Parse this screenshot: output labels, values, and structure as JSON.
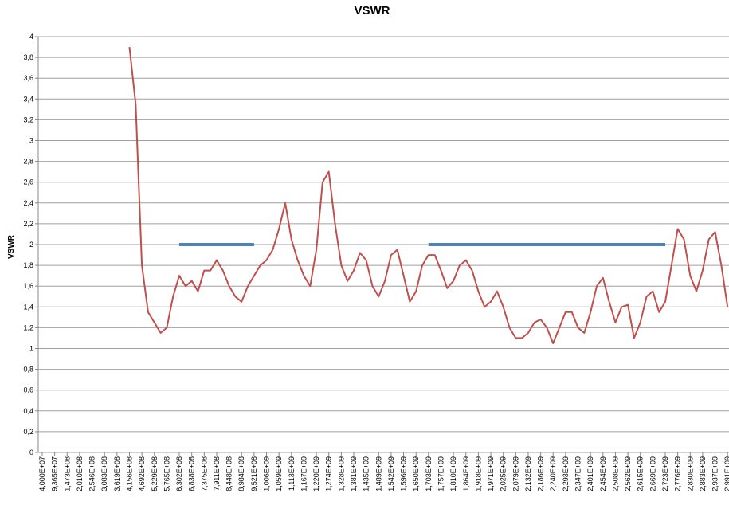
{
  "chart_data": {
    "type": "line",
    "title": "VSWR",
    "y_label": "VSWR",
    "categories": [
      "4,000E+07",
      null,
      "9,365E+07",
      null,
      "1,473E+08",
      null,
      "2,010E+08",
      null,
      "2,546E+08",
      null,
      "3,083E+08",
      null,
      "3,619E+08",
      null,
      "4,156E+08",
      null,
      "4,692E+08",
      null,
      "5,229E+08",
      null,
      "5,765E+08",
      null,
      "6,302E+08",
      null,
      "6,838E+08",
      null,
      "7,375E+08",
      null,
      "7,911E+08",
      null,
      "8,448E+08",
      null,
      "8,984E+08",
      null,
      "9,521E+08",
      null,
      "1,006E+09",
      null,
      "1,059E+09",
      null,
      "1,113E+09",
      null,
      "1,167E+09",
      null,
      "1,220E+09",
      null,
      "1,274E+09",
      null,
      "1,328E+09",
      null,
      "1,381E+09",
      null,
      "1,435E+09",
      null,
      "1,489E+09",
      null,
      "1,542E+09",
      null,
      "1,596E+09",
      null,
      "1,650E+09",
      null,
      "1,703E+09",
      null,
      "1,757E+09",
      null,
      "1,810E+09",
      null,
      "1,864E+09",
      null,
      "1,918E+09",
      null,
      "1,971E+09",
      null,
      "2,025E+09",
      null,
      "2,079E+09",
      null,
      "2,132E+09",
      null,
      "2,186E+09",
      null,
      "2,240E+09",
      null,
      "2,293E+09",
      null,
      "2,347E+09",
      null,
      "2,401E+09",
      null,
      "2,454E+09",
      null,
      "2,508E+09",
      null,
      "2,562E+09",
      null,
      "2,615E+09",
      null,
      "2,669E+09",
      null,
      "2,723E+09",
      null,
      "2,776E+09",
      null,
      "2,830E+09",
      null,
      "2,883E+09",
      null,
      "2,937E+09",
      null,
      "2,991E+09"
    ],
    "series": [
      {
        "color": "#c0504d",
        "values": [
          null,
          null,
          null,
          null,
          null,
          null,
          null,
          null,
          null,
          null,
          null,
          null,
          null,
          null,
          3.9,
          3.35,
          1.8,
          1.35,
          1.25,
          1.15,
          1.2,
          1.5,
          1.7,
          1.6,
          1.65,
          1.55,
          1.75,
          1.75,
          1.85,
          1.75,
          1.6,
          1.5,
          1.45,
          1.6,
          1.7,
          1.8,
          1.85,
          1.95,
          2.15,
          2.4,
          2.05,
          1.85,
          1.7,
          1.6,
          1.95,
          2.6,
          2.7,
          2.2,
          1.8,
          1.65,
          1.75,
          1.92,
          1.85,
          1.6,
          1.5,
          1.65,
          1.9,
          1.95,
          1.7,
          1.45,
          1.55,
          1.8,
          1.9,
          1.9,
          1.75,
          1.58,
          1.65,
          1.8,
          1.85,
          1.75,
          1.55,
          1.4,
          1.45,
          1.55,
          1.4,
          1.2,
          1.1,
          1.1,
          1.15,
          1.25,
          1.28,
          1.2,
          1.05,
          1.2,
          1.35,
          1.35,
          1.2,
          1.15,
          1.35,
          1.6,
          1.68,
          1.45,
          1.25,
          1.4,
          1.42,
          1.1,
          1.25,
          1.5,
          1.55,
          1.35,
          1.45,
          1.8,
          2.15,
          2.05,
          1.7,
          1.55,
          1.75,
          2.05,
          2.12,
          1.8,
          1.4
        ]
      },
      {
        "color": "#4f81bd",
        "values": [
          null,
          null,
          null,
          null,
          null,
          null,
          null,
          null,
          null,
          null,
          null,
          null,
          null,
          null,
          null,
          null,
          null,
          null,
          null,
          null,
          null,
          null,
          2,
          2,
          2,
          2,
          2,
          2,
          2,
          2,
          2,
          2,
          2,
          2,
          2,
          null,
          null,
          null,
          null,
          null,
          null,
          null,
          null,
          null,
          null,
          null,
          null,
          null,
          null,
          null,
          null,
          null,
          null,
          null,
          null,
          null,
          null,
          null,
          null,
          null,
          null,
          null,
          2,
          2,
          2,
          2,
          2,
          2,
          2,
          2,
          2,
          2,
          2,
          2,
          2,
          2,
          2,
          2,
          2,
          2,
          2,
          2,
          2,
          2,
          2,
          2,
          2,
          2,
          2,
          2,
          2,
          2,
          2,
          2,
          2,
          2,
          2,
          2,
          2,
          2,
          2,
          null,
          null,
          null,
          null,
          null,
          null,
          null,
          null,
          null,
          null
        ]
      }
    ],
    "ylim": [
      0,
      4
    ],
    "yticks": [
      0,
      {
        "value": 0.2,
        "label": "0,2"
      },
      {
        "value": 0.4,
        "label": "0,4"
      },
      {
        "value": 0.6,
        "label": "0,6"
      },
      {
        "value": 0.8,
        "label": "0,8"
      },
      1,
      {
        "value": 1.2,
        "label": "1,2"
      },
      {
        "value": 1.4,
        "label": "1,4"
      },
      {
        "value": 1.6,
        "label": "1,6"
      },
      {
        "value": 1.8,
        "label": "1,8"
      },
      2,
      {
        "value": 2.2,
        "label": "2,2"
      },
      {
        "value": 2.4,
        "label": "2,4"
      },
      {
        "value": 2.6,
        "label": "2,6"
      },
      {
        "value": 2.8,
        "label": "2,8"
      },
      3,
      {
        "value": 3.2,
        "label": "3,2"
      },
      {
        "value": 3.4,
        "label": "3,4"
      },
      {
        "value": 3.6,
        "label": "3,6"
      },
      {
        "value": 3.8,
        "label": "3,8"
      },
      4
    ],
    "grid": true
  }
}
